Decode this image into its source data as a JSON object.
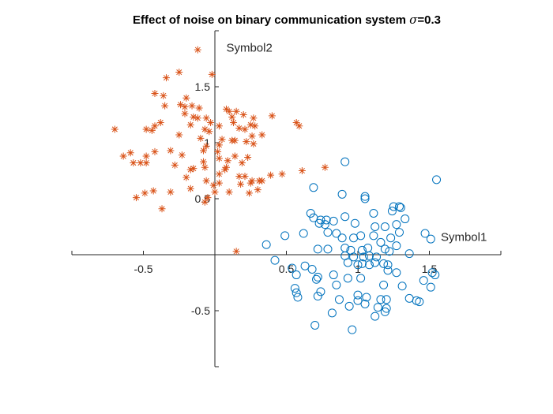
{
  "chart_data": {
    "type": "scatter",
    "title_text": "Effect of noise on binary communication system ",
    "title_sigma": "σ",
    "title_value": "=0.3",
    "xlim": [
      -1,
      2
    ],
    "ylim": [
      -1,
      2
    ],
    "axes_through_origin": true,
    "grid": false,
    "x_ticks": [
      -0.5,
      0.5,
      1,
      1.5
    ],
    "x_tick_labels": [
      "-0.5",
      "0.5",
      "1",
      "1.5"
    ],
    "y_ticks": [
      -0.5,
      0.5,
      1,
      1.5
    ],
    "y_tick_labels": [
      "-0.5",
      "0.5",
      "1",
      "1.5"
    ],
    "annotations": [
      {
        "text": "Symbol1",
        "x": 1.58,
        "y": 0.16
      },
      {
        "text": "Symbol2",
        "x": 0.08,
        "y": 1.85
      }
    ],
    "series": [
      {
        "marker": "circle",
        "color": "#0072BD",
        "points": [
          [
            0.91,
            0.83
          ],
          [
            0.69,
            0.6
          ],
          [
            0.89,
            0.54
          ],
          [
            1.05,
            0.52
          ],
          [
            1.05,
            0.5
          ],
          [
            1.55,
            0.67
          ],
          [
            0.67,
            0.37
          ],
          [
            0.69,
            0.33
          ],
          [
            0.74,
            0.31
          ],
          [
            0.78,
            0.31
          ],
          [
            0.77,
            0.27
          ],
          [
            0.83,
            0.3
          ],
          [
            0.98,
            0.28
          ],
          [
            0.91,
            0.34
          ],
          [
            1.11,
            0.37
          ],
          [
            1.25,
            0.43
          ],
          [
            1.29,
            0.43
          ],
          [
            1.3,
            0.42
          ],
          [
            1.24,
            0.39
          ],
          [
            1.33,
            0.32
          ],
          [
            1.27,
            0.27
          ],
          [
            1.19,
            0.25
          ],
          [
            1.12,
            0.25
          ],
          [
            1.11,
            0.17
          ],
          [
            1.02,
            0.17
          ],
          [
            0.97,
            0.15
          ],
          [
            0.89,
            0.15
          ],
          [
            0.85,
            0.19
          ],
          [
            0.79,
            0.2
          ],
          [
            0.73,
            0.28
          ],
          [
            0.62,
            0.19
          ],
          [
            0.49,
            0.17
          ],
          [
            0.36,
            0.09
          ],
          [
            0.72,
            0.05
          ],
          [
            0.79,
            0.05
          ],
          [
            0.91,
            0.06
          ],
          [
            0.95,
            0.04
          ],
          [
            1.03,
            0.04
          ],
          [
            1.07,
            0.06
          ],
          [
            1.16,
            0.11
          ],
          [
            1.23,
            0.15
          ],
          [
            1.29,
            0.2
          ],
          [
            1.47,
            0.19
          ],
          [
            1.51,
            0.14
          ],
          [
            1.27,
            0.08
          ],
          [
            1.22,
            0.03
          ],
          [
            1.36,
            0.01
          ],
          [
            0.91,
            -0.01
          ],
          [
            0.97,
            -0.02
          ],
          [
            1.04,
            -0.02
          ],
          [
            1.08,
            -0.01
          ],
          [
            1.13,
            -0.02
          ],
          [
            1.19,
            0.05
          ],
          [
            0.93,
            -0.07
          ],
          [
            1.0,
            -0.09
          ],
          [
            1.03,
            -0.08
          ],
          [
            1.08,
            -0.09
          ],
          [
            1.12,
            -0.07
          ],
          [
            1.18,
            -0.08
          ],
          [
            1.21,
            -0.09
          ],
          [
            1.21,
            -0.14
          ],
          [
            1.27,
            -0.16
          ],
          [
            1.52,
            -0.16
          ],
          [
            1.54,
            -0.18
          ],
          [
            0.57,
            -0.18
          ],
          [
            0.63,
            -0.1
          ],
          [
            0.68,
            -0.13
          ],
          [
            0.71,
            -0.22
          ],
          [
            0.72,
            -0.2
          ],
          [
            0.83,
            -0.18
          ],
          [
            0.93,
            -0.21
          ],
          [
            1.02,
            -0.21
          ],
          [
            1.18,
            -0.27
          ],
          [
            0.56,
            -0.3
          ],
          [
            0.85,
            -0.27
          ],
          [
            0.74,
            -0.33
          ],
          [
            1.31,
            -0.28
          ],
          [
            1.51,
            -0.29
          ],
          [
            1.46,
            -0.23
          ],
          [
            0.42,
            -0.05
          ],
          [
            0.54,
            -0.12
          ],
          [
            0.57,
            -0.34
          ],
          [
            0.87,
            -0.4
          ],
          [
            1.0,
            -0.41
          ],
          [
            1.05,
            -0.44
          ],
          [
            0.94,
            -0.46
          ],
          [
            0.82,
            -0.52
          ],
          [
            1.14,
            -0.47
          ],
          [
            1.2,
            -0.48
          ],
          [
            1.16,
            -0.4
          ],
          [
            1.19,
            -0.51
          ],
          [
            0.58,
            -0.38
          ],
          [
            0.72,
            -0.37
          ],
          [
            1.0,
            -0.36
          ],
          [
            1.06,
            -0.38
          ],
          [
            1.2,
            -0.4
          ],
          [
            1.36,
            -0.39
          ],
          [
            1.41,
            -0.41
          ],
          [
            1.43,
            -0.42
          ],
          [
            0.7,
            -0.63
          ],
          [
            0.96,
            -0.67
          ],
          [
            1.12,
            -0.55
          ]
        ]
      },
      {
        "marker": "asterisk",
        "color": "#D95319",
        "points": [
          [
            -0.12,
            1.83
          ],
          [
            -0.02,
            1.61
          ],
          [
            -0.25,
            1.63
          ],
          [
            -0.34,
            1.58
          ],
          [
            -0.42,
            1.44
          ],
          [
            -0.36,
            1.42
          ],
          [
            -0.35,
            1.33
          ],
          [
            -0.2,
            1.4
          ],
          [
            -0.21,
            1.32
          ],
          [
            -0.24,
            1.34
          ],
          [
            -0.21,
            1.26
          ],
          [
            -0.16,
            1.33
          ],
          [
            -0.11,
            1.31
          ],
          [
            -0.15,
            1.23
          ],
          [
            -0.12,
            1.22
          ],
          [
            -0.06,
            1.22
          ],
          [
            -0.03,
            1.18
          ],
          [
            0.08,
            1.3
          ],
          [
            0.1,
            1.28
          ],
          [
            0.15,
            1.28
          ],
          [
            0.2,
            1.25
          ],
          [
            0.12,
            1.23
          ],
          [
            0.13,
            1.18
          ],
          [
            0.27,
            1.22
          ],
          [
            0.25,
            1.16
          ],
          [
            0.28,
            1.15
          ],
          [
            0.21,
            1.12
          ],
          [
            0.17,
            1.13
          ],
          [
            0.4,
            1.24
          ],
          [
            0.57,
            1.18
          ],
          [
            0.59,
            1.15
          ],
          [
            -0.7,
            1.12
          ],
          [
            -0.42,
            1.15
          ],
          [
            -0.44,
            1.11
          ],
          [
            -0.38,
            1.18
          ],
          [
            -0.48,
            1.12
          ],
          [
            -0.17,
            1.16
          ],
          [
            -0.1,
            1.04
          ],
          [
            -0.25,
            1.07
          ],
          [
            -0.07,
            1.12
          ],
          [
            -0.04,
            1.1
          ],
          [
            0.03,
            1.15
          ],
          [
            0.05,
            1.03
          ],
          [
            0.12,
            1.02
          ],
          [
            0.14,
            1.02
          ],
          [
            0.22,
            1.01
          ],
          [
            0.26,
            1.06
          ],
          [
            0.27,
            0.99
          ],
          [
            0.33,
            1.07
          ],
          [
            0.03,
            0.98
          ],
          [
            -0.06,
            0.97
          ],
          [
            -0.59,
            0.91
          ],
          [
            -0.64,
            0.88
          ],
          [
            -0.48,
            0.88
          ],
          [
            -0.42,
            0.92
          ],
          [
            -0.31,
            0.93
          ],
          [
            -0.23,
            0.89
          ],
          [
            -0.08,
            0.93
          ],
          [
            0.02,
            0.92
          ],
          [
            0.03,
            0.86
          ],
          [
            0.14,
            0.88
          ],
          [
            0.19,
            0.82
          ],
          [
            0.23,
            0.87
          ],
          [
            0.09,
            0.84
          ],
          [
            0.08,
            0.78
          ],
          [
            -0.08,
            0.83
          ],
          [
            -0.15,
            0.77
          ],
          [
            -0.28,
            0.8
          ],
          [
            -0.48,
            0.82
          ],
          [
            -0.52,
            0.82
          ],
          [
            -0.57,
            0.82
          ],
          [
            -0.17,
            0.76
          ],
          [
            0.07,
            0.76
          ],
          [
            0.03,
            0.72
          ],
          [
            0.17,
            0.7
          ],
          [
            0.21,
            0.7
          ],
          [
            0.25,
            0.64
          ],
          [
            0.26,
            0.66
          ],
          [
            0.31,
            0.66
          ],
          [
            0.39,
            0.71
          ],
          [
            0.47,
            0.72
          ],
          [
            0.61,
            0.75
          ],
          [
            0.77,
            0.78
          ],
          [
            -0.07,
            0.78
          ],
          [
            -0.2,
            0.69
          ],
          [
            -0.06,
            0.66
          ],
          [
            -0.01,
            0.62
          ],
          [
            0.03,
            0.64
          ],
          [
            0.18,
            0.63
          ],
          [
            0.33,
            0.66
          ],
          [
            -0.55,
            0.51
          ],
          [
            -0.49,
            0.55
          ],
          [
            -0.43,
            0.57
          ],
          [
            -0.31,
            0.56
          ],
          [
            -0.17,
            0.59
          ],
          [
            0.0,
            0.56
          ],
          [
            0.1,
            0.56
          ],
          [
            0.24,
            0.55
          ],
          [
            0.3,
            0.58
          ],
          [
            -0.05,
            0.51
          ],
          [
            -0.07,
            0.47
          ],
          [
            -0.37,
            0.41
          ],
          [
            0.15,
            0.03
          ]
        ]
      }
    ]
  }
}
